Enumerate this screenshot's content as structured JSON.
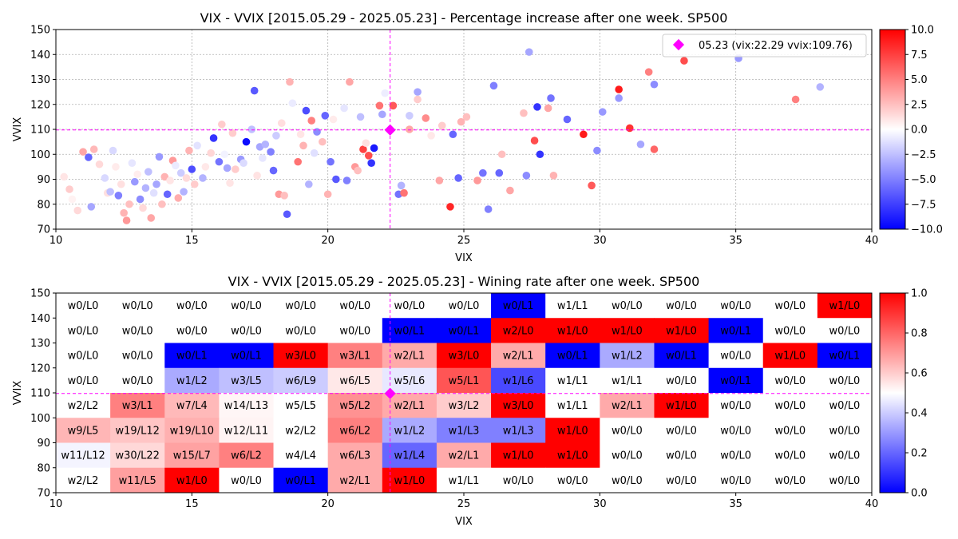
{
  "chart_data": [
    {
      "type": "scatter",
      "title": "VIX - VVIX [2015.05.29 - 2025.05.23]  - Percentage increase after one week. SP500",
      "xlabel": "VIX",
      "ylabel": "VVIX",
      "xlim": [
        10,
        40
      ],
      "ylim": [
        70,
        150
      ],
      "xticks": [
        "10",
        "15",
        "20",
        "25",
        "30",
        "35",
        "40"
      ],
      "yticks": [
        "70",
        "80",
        "90",
        "100",
        "110",
        "120",
        "130",
        "140",
        "150"
      ],
      "grid": true,
      "legend_position": "top-right",
      "legend_label": "05.23 (vix:22.29 vvix:109.76)",
      "current_point": {
        "x": 22.29,
        "y": 109.76,
        "color": "#ff00ff"
      },
      "colorbar": {
        "min": -10,
        "max": 10,
        "ticks": [
          "10.0",
          "7.5",
          "5.0",
          "2.5",
          "0.0",
          "−2.5",
          "−5.0",
          "−7.5",
          "−10.0"
        ],
        "colormap": "bwr"
      },
      "points": [
        [
          11.0,
          101.0,
          3.5
        ],
        [
          11.2,
          98.8,
          -6.0
        ],
        [
          11.4,
          102.0,
          2.8
        ],
        [
          10.5,
          86.0,
          2.0
        ],
        [
          10.8,
          77.5,
          1.5
        ],
        [
          11.9,
          84.5,
          1.2
        ],
        [
          11.3,
          79.0,
          -3.5
        ],
        [
          12.0,
          85.0,
          -2.5
        ],
        [
          12.1,
          101.5,
          -1.5
        ],
        [
          12.3,
          83.5,
          -5.0
        ],
        [
          12.5,
          76.5,
          3.0
        ],
        [
          12.6,
          73.5,
          4.0
        ],
        [
          12.7,
          80.0,
          2.5
        ],
        [
          12.9,
          89.0,
          -4.0
        ],
        [
          13.1,
          82.0,
          -4.5
        ],
        [
          13.3,
          86.5,
          -3.0
        ],
        [
          13.5,
          74.5,
          3.5
        ],
        [
          13.7,
          88.0,
          -3.5
        ],
        [
          13.8,
          99.0,
          -4.0
        ],
        [
          14.0,
          91.0,
          3.0
        ],
        [
          14.1,
          84.0,
          -6.0
        ],
        [
          14.3,
          97.5,
          4.0
        ],
        [
          14.5,
          82.5,
          3.2
        ],
        [
          14.6,
          92.5,
          -2.0
        ],
        [
          14.9,
          101.5,
          3.0
        ],
        [
          15.0,
          94.0,
          -7.0
        ],
        [
          15.1,
          88.0,
          2.0
        ],
        [
          14.7,
          85.0,
          -3.0
        ],
        [
          13.9,
          80.0,
          2.5
        ],
        [
          13.4,
          93.0,
          -2.5
        ],
        [
          15.8,
          106.5,
          -8.0
        ],
        [
          16.0,
          97.0,
          -5.5
        ],
        [
          16.3,
          94.5,
          -3.5
        ],
        [
          16.5,
          108.5,
          2.0
        ],
        [
          16.8,
          98.0,
          -4.0
        ],
        [
          17.0,
          105.0,
          -9.5
        ],
        [
          17.2,
          110.0,
          -2.5
        ],
        [
          17.3,
          125.5,
          -6.5
        ],
        [
          17.5,
          103.0,
          -3.5
        ],
        [
          17.9,
          101.0,
          -5.0
        ],
        [
          18.0,
          93.5,
          -6.0
        ],
        [
          18.2,
          84.0,
          4.0
        ],
        [
          18.5,
          76.0,
          -6.5
        ],
        [
          18.6,
          129.0,
          3.0
        ],
        [
          18.9,
          97.0,
          5.5
        ],
        [
          19.1,
          103.5,
          3.0
        ],
        [
          19.2,
          117.5,
          -7.0
        ],
        [
          19.4,
          113.5,
          5.0
        ],
        [
          19.6,
          109.0,
          -4.5
        ],
        [
          19.9,
          115.5,
          -6.0
        ],
        [
          20.1,
          97.0,
          -5.5
        ],
        [
          20.3,
          90.0,
          -6.5
        ],
        [
          20.7,
          89.5,
          -5.0
        ],
        [
          20.8,
          129.0,
          3.5
        ],
        [
          21.0,
          95.0,
          4.0
        ],
        [
          21.3,
          102.0,
          7.5
        ],
        [
          21.5,
          99.5,
          7.0
        ],
        [
          21.6,
          96.5,
          -8.0
        ],
        [
          21.7,
          102.5,
          -9.0
        ],
        [
          21.9,
          119.5,
          5.5
        ],
        [
          22.0,
          116.0,
          -3.5
        ],
        [
          22.4,
          119.5,
          6.5
        ],
        [
          22.6,
          84.0,
          -5.5
        ],
        [
          22.8,
          84.5,
          5.5
        ],
        [
          23.0,
          110.0,
          3.5
        ],
        [
          23.3,
          125.0,
          -3.5
        ],
        [
          23.6,
          114.5,
          4.5
        ],
        [
          24.1,
          89.5,
          3.5
        ],
        [
          24.5,
          79.0,
          8.5
        ],
        [
          24.6,
          108.0,
          -6.0
        ],
        [
          24.8,
          90.5,
          -6.0
        ],
        [
          25.5,
          89.5,
          4.0
        ],
        [
          25.7,
          92.5,
          -5.5
        ],
        [
          25.9,
          78.0,
          -5.0
        ],
        [
          26.1,
          127.5,
          -5.0
        ],
        [
          26.3,
          92.5,
          -6.0
        ],
        [
          27.3,
          91.5,
          -4.5
        ],
        [
          27.4,
          141.0,
          -3.5
        ],
        [
          27.6,
          105.5,
          7.0
        ],
        [
          27.7,
          119.0,
          -8.0
        ],
        [
          27.8,
          100.0,
          -8.0
        ],
        [
          28.1,
          118.5,
          3.5
        ],
        [
          28.2,
          122.5,
          -5.5
        ],
        [
          28.8,
          114.0,
          -6.0
        ],
        [
          29.4,
          108.0,
          9.0
        ],
        [
          29.7,
          87.5,
          6.5
        ],
        [
          30.1,
          117.0,
          -4.0
        ],
        [
          30.7,
          126.0,
          9.0
        ],
        [
          31.1,
          110.5,
          8.0
        ],
        [
          31.8,
          133.0,
          5.0
        ],
        [
          32.0,
          102.0,
          6.0
        ],
        [
          32.0,
          128.0,
          -4.5
        ],
        [
          33.1,
          137.5,
          7.0
        ],
        [
          35.1,
          138.5,
          -4.0
        ],
        [
          37.2,
          122.0,
          5.0
        ],
        [
          38.1,
          127.0,
          -3.0
        ],
        [
          29.9,
          101.5,
          -4.5
        ],
        [
          30.7,
          122.5,
          -4.0
        ],
        [
          31.5,
          104.0,
          -3.5
        ],
        [
          26.7,
          85.5,
          3.5
        ],
        [
          25.1,
          115.0,
          2.5
        ],
        [
          24.2,
          111.5,
          2.0
        ],
        [
          23.0,
          115.5,
          -2.0
        ],
        [
          21.1,
          93.5,
          2.5
        ],
        [
          20.0,
          84.0,
          3.0
        ],
        [
          19.3,
          88.0,
          -3.0
        ],
        [
          18.4,
          83.5,
          2.5
        ],
        [
          17.7,
          104.0,
          -3.0
        ],
        [
          16.6,
          94.0,
          2.0
        ],
        [
          15.4,
          90.5,
          -3.0
        ],
        [
          24.9,
          113.0,
          3.0
        ],
        [
          26.4,
          100.0,
          2.5
        ],
        [
          28.3,
          91.5,
          3.0
        ],
        [
          27.2,
          116.5,
          2.5
        ],
        [
          22.7,
          87.5,
          -3.0
        ],
        [
          23.3,
          122.0,
          2.0
        ],
        [
          21.2,
          115.0,
          -2.5
        ],
        [
          19.8,
          105.0,
          2.5
        ],
        [
          18.1,
          107.5,
          -2.0
        ],
        [
          16.1,
          112.0,
          2.0
        ],
        [
          10.3,
          91.0,
          1.0
        ],
        [
          10.6,
          82.0,
          0.5
        ],
        [
          11.6,
          96.0,
          1.5
        ],
        [
          11.8,
          90.5,
          -1.5
        ],
        [
          12.2,
          95.0,
          0.8
        ],
        [
          12.4,
          88.0,
          1.2
        ],
        [
          12.8,
          96.5,
          -1.0
        ],
        [
          13.0,
          92.0,
          0.7
        ],
        [
          13.2,
          78.5,
          1.5
        ],
        [
          13.6,
          84.5,
          -1.2
        ],
        [
          14.2,
          89.5,
          1.0
        ],
        [
          14.4,
          95.5,
          -0.8
        ],
        [
          14.8,
          90.5,
          1.4
        ],
        [
          15.2,
          103.5,
          -1.1
        ],
        [
          15.5,
          95.0,
          0.9
        ],
        [
          15.7,
          100.5,
          1.6
        ],
        [
          16.2,
          100.0,
          -0.5
        ],
        [
          16.4,
          88.5,
          1.0
        ],
        [
          16.9,
          96.5,
          -1.4
        ],
        [
          17.4,
          91.5,
          1.1
        ],
        [
          17.6,
          98.5,
          -1.0
        ],
        [
          18.3,
          112.5,
          1.3
        ],
        [
          18.7,
          120.5,
          -0.8
        ],
        [
          19.0,
          108.0,
          1.0
        ],
        [
          19.5,
          100.5,
          -1.2
        ],
        [
          20.2,
          114.0,
          0.8
        ],
        [
          20.6,
          118.5,
          -1.0
        ],
        [
          21.4,
          104.5,
          1.2
        ],
        [
          22.1,
          124.5,
          -0.7
        ],
        [
          23.8,
          107.5,
          0.9
        ]
      ]
    },
    {
      "type": "heatmap",
      "title": "VIX - VVIX [2015.05.29 - 2025.05.23]  - Wining rate after one week. SP500",
      "xlabel": "VIX",
      "ylabel": "VVIX",
      "xlim": [
        10,
        40
      ],
      "ylim": [
        70,
        150
      ],
      "xticks": [
        "10",
        "15",
        "20",
        "25",
        "30",
        "35",
        "40"
      ],
      "yticks": [
        "70",
        "80",
        "90",
        "100",
        "110",
        "120",
        "130",
        "140",
        "150"
      ],
      "x_bin_width": 2,
      "y_bin_width": 10,
      "current_point": {
        "x": 22.29,
        "y": 109.76,
        "color": "#ff00ff"
      },
      "colorbar": {
        "min": 0,
        "max": 1,
        "ticks": [
          "1.0",
          "0.8",
          "0.6",
          "0.4",
          "0.2",
          "0.0"
        ],
        "colormap": "bwr"
      },
      "rows_top_to_bottom": [
        [
          "w0/L0",
          "w0/L0",
          "w0/L0",
          "w0/L0",
          "w0/L0",
          "w0/L0",
          "w0/L0",
          "w0/L0",
          "w0/L1",
          "w1/L1",
          "w0/L0",
          "w0/L0",
          "w0/L0",
          "w0/L0",
          "w1/L0"
        ],
        [
          "w0/L0",
          "w0/L0",
          "w0/L0",
          "w0/L0",
          "w0/L0",
          "w0/L0",
          "w0/L1",
          "w0/L1",
          "w2/L0",
          "w1/L0",
          "w1/L0",
          "w1/L0",
          "w0/L1",
          "w0/L0",
          "w0/L0"
        ],
        [
          "w0/L0",
          "w0/L0",
          "w0/L1",
          "w0/L1",
          "w3/L0",
          "w3/L1",
          "w2/L1",
          "w3/L0",
          "w2/L1",
          "w0/L1",
          "w1/L2",
          "w0/L1",
          "w0/L0",
          "w1/L0",
          "w0/L1"
        ],
        [
          "w0/L0",
          "w0/L0",
          "w1/L2",
          "w3/L5",
          "w6/L9",
          "w6/L5",
          "w5/L6",
          "w5/L1",
          "w1/L6",
          "w1/L1",
          "w1/L1",
          "w0/L0",
          "w0/L1",
          "w0/L0",
          "w0/L0"
        ],
        [
          "w2/L2",
          "w3/L1",
          "w7/L4",
          "w14/L13",
          "w5/L5",
          "w5/L2",
          "w2/L1",
          "w3/L2",
          "w3/L0",
          "w1/L1",
          "w2/L1",
          "w1/L0",
          "w0/L0",
          "w0/L0",
          "w0/L0"
        ],
        [
          "w9/L5",
          "w19/L12",
          "w19/L10",
          "w12/L11",
          "w2/L2",
          "w6/L2",
          "w1/L2",
          "w1/L3",
          "w1/L3",
          "w1/L0",
          "w0/L0",
          "w0/L0",
          "w0/L0",
          "w0/L0",
          "w0/L0"
        ],
        [
          "w11/L12",
          "w30/L22",
          "w15/L7",
          "w6/L2",
          "w4/L4",
          "w6/L3",
          "w1/L4",
          "w2/L1",
          "w1/L0",
          "w1/L0",
          "w0/L0",
          "w0/L0",
          "w0/L0",
          "w0/L0",
          "w0/L0"
        ],
        [
          "w2/L2",
          "w11/L5",
          "w1/L0",
          "w0/L0",
          "w0/L1",
          "w2/L1",
          "w1/L0",
          "w1/L1",
          "w0/L0",
          "w0/L0",
          "w0/L0",
          "w0/L0",
          "w0/L0",
          "w0/L0",
          "w0/L0"
        ]
      ]
    }
  ]
}
